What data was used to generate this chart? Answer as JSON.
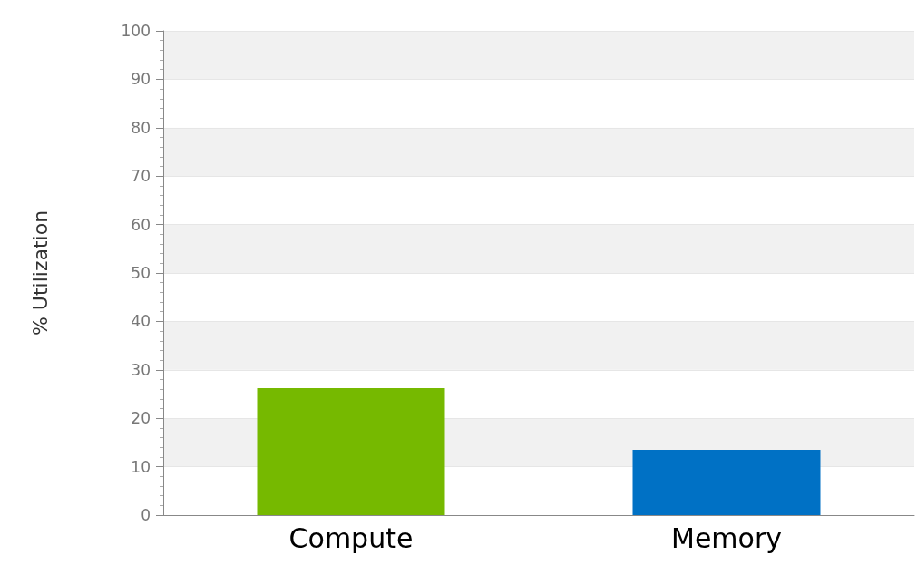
{
  "chart_data": {
    "type": "bar",
    "ylabel": "% Utilization",
    "categories": [
      "Compute",
      "Memory"
    ],
    "values": [
      26.2,
      13.5
    ],
    "colors": [
      "#76b900",
      "#0071c5"
    ],
    "ylim": [
      0,
      100
    ],
    "yticks": [
      0,
      10,
      20,
      30,
      40,
      50,
      60,
      70,
      80,
      90,
      100
    ],
    "grid": "y"
  }
}
